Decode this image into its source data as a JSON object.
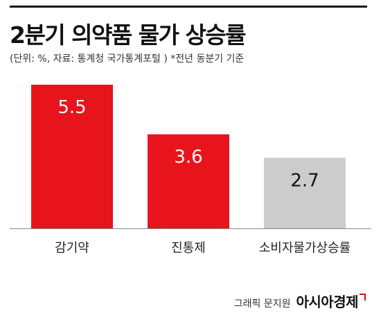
{
  "header": {
    "title": "2분기 의약품 물가 상승률",
    "subtitle": "(단위: %, 자료: 통계청 국가통계포털 )  *전년 동분기 기준"
  },
  "chart_data": {
    "type": "bar",
    "title": "2분기 의약품 물가 상승률",
    "subtitle": "(단위: %, 자료: 통계청 국가통계포털 )  *전년 동분기 기준",
    "unit": "%",
    "categories": [
      "감기약",
      "진통제",
      "소비자물가상승률"
    ],
    "values": [
      5.5,
      3.6,
      2.7
    ],
    "colors": [
      "#e8141c",
      "#e8141c",
      "#cccccc"
    ],
    "value_label_colors": [
      "#ffffff",
      "#ffffff",
      "#111111"
    ],
    "ylim": [
      0,
      5.5
    ],
    "grid": false,
    "legend": "none",
    "axis_line_color": "#888888"
  },
  "footer": {
    "graphic_credit": "그래픽 문지원",
    "brand": "아시아경제"
  }
}
